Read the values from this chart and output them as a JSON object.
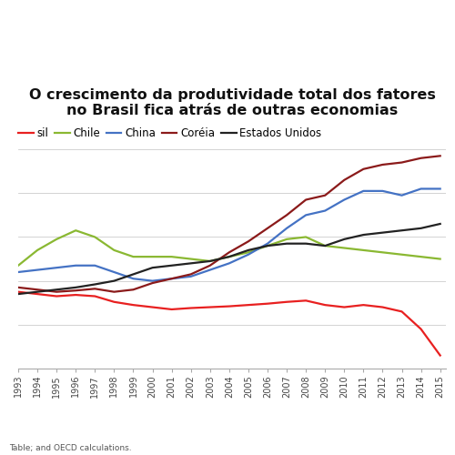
{
  "title": "O crescimento da produtividade total dos fatores\nno Brasil fica atrás de outras economias",
  "source_text": "Table; and OECD calculations.",
  "years": [
    1993,
    1994,
    1995,
    1996,
    1997,
    1998,
    1999,
    2000,
    2001,
    2002,
    2003,
    2004,
    2005,
    2006,
    2007,
    2008,
    2009,
    2010,
    2011,
    2012,
    2013,
    2014,
    2015
  ],
  "series": [
    {
      "name": "sil",
      "color": "#e82020",
      "linewidth": 1.6,
      "values": [
        97.5,
        97.0,
        96.5,
        96.8,
        96.5,
        95.2,
        94.5,
        94.0,
        93.5,
        93.8,
        94.0,
        94.2,
        94.5,
        94.8,
        95.2,
        95.5,
        94.5,
        94.0,
        94.5,
        94.0,
        93.0,
        89.0,
        83.0
      ]
    },
    {
      "name": "Chile",
      "color": "#8ab832",
      "linewidth": 1.6,
      "values": [
        103.5,
        107.0,
        109.5,
        111.5,
        110.0,
        107.0,
        105.5,
        105.5,
        105.5,
        105.0,
        104.5,
        105.5,
        106.5,
        108.0,
        109.5,
        110.0,
        108.0,
        107.5,
        107.0,
        106.5,
        106.0,
        105.5,
        105.0
      ]
    },
    {
      "name": "China",
      "color": "#4472c4",
      "linewidth": 1.6,
      "values": [
        102.0,
        102.5,
        103.0,
        103.5,
        103.5,
        102.0,
        100.5,
        100.0,
        100.5,
        101.0,
        102.5,
        104.0,
        106.0,
        108.5,
        112.0,
        115.0,
        116.0,
        118.5,
        120.5,
        120.5,
        119.5,
        121.0,
        121.0
      ]
    },
    {
      "name": "Coréia",
      "color": "#8b1a1a",
      "linewidth": 1.6,
      "values": [
        98.5,
        98.0,
        97.5,
        97.8,
        98.2,
        97.5,
        98.0,
        99.5,
        100.5,
        101.5,
        103.5,
        106.5,
        109.0,
        112.0,
        115.0,
        118.5,
        119.5,
        123.0,
        125.5,
        126.5,
        127.0,
        128.0,
        128.5
      ]
    },
    {
      "name": "Estados Unidos",
      "color": "#222222",
      "linewidth": 1.6,
      "values": [
        97.0,
        97.5,
        98.0,
        98.5,
        99.2,
        100.0,
        101.5,
        103.0,
        103.5,
        104.0,
        104.5,
        105.5,
        107.0,
        108.0,
        108.5,
        108.5,
        108.0,
        109.5,
        110.5,
        111.0,
        111.5,
        112.0,
        113.0
      ]
    }
  ],
  "ylim": [
    80,
    135
  ],
  "xlim_min": 1993,
  "xlim_max": 2015.3,
  "background_color": "#ffffff",
  "grid_color": "#cccccc",
  "title_fontsize": 11.5,
  "legend_fontsize": 8.5,
  "tick_fontsize": 7,
  "source_fontsize": 6.5,
  "grid_linewidth": 0.6,
  "yticks": [
    80,
    90,
    100,
    110,
    120,
    130
  ]
}
